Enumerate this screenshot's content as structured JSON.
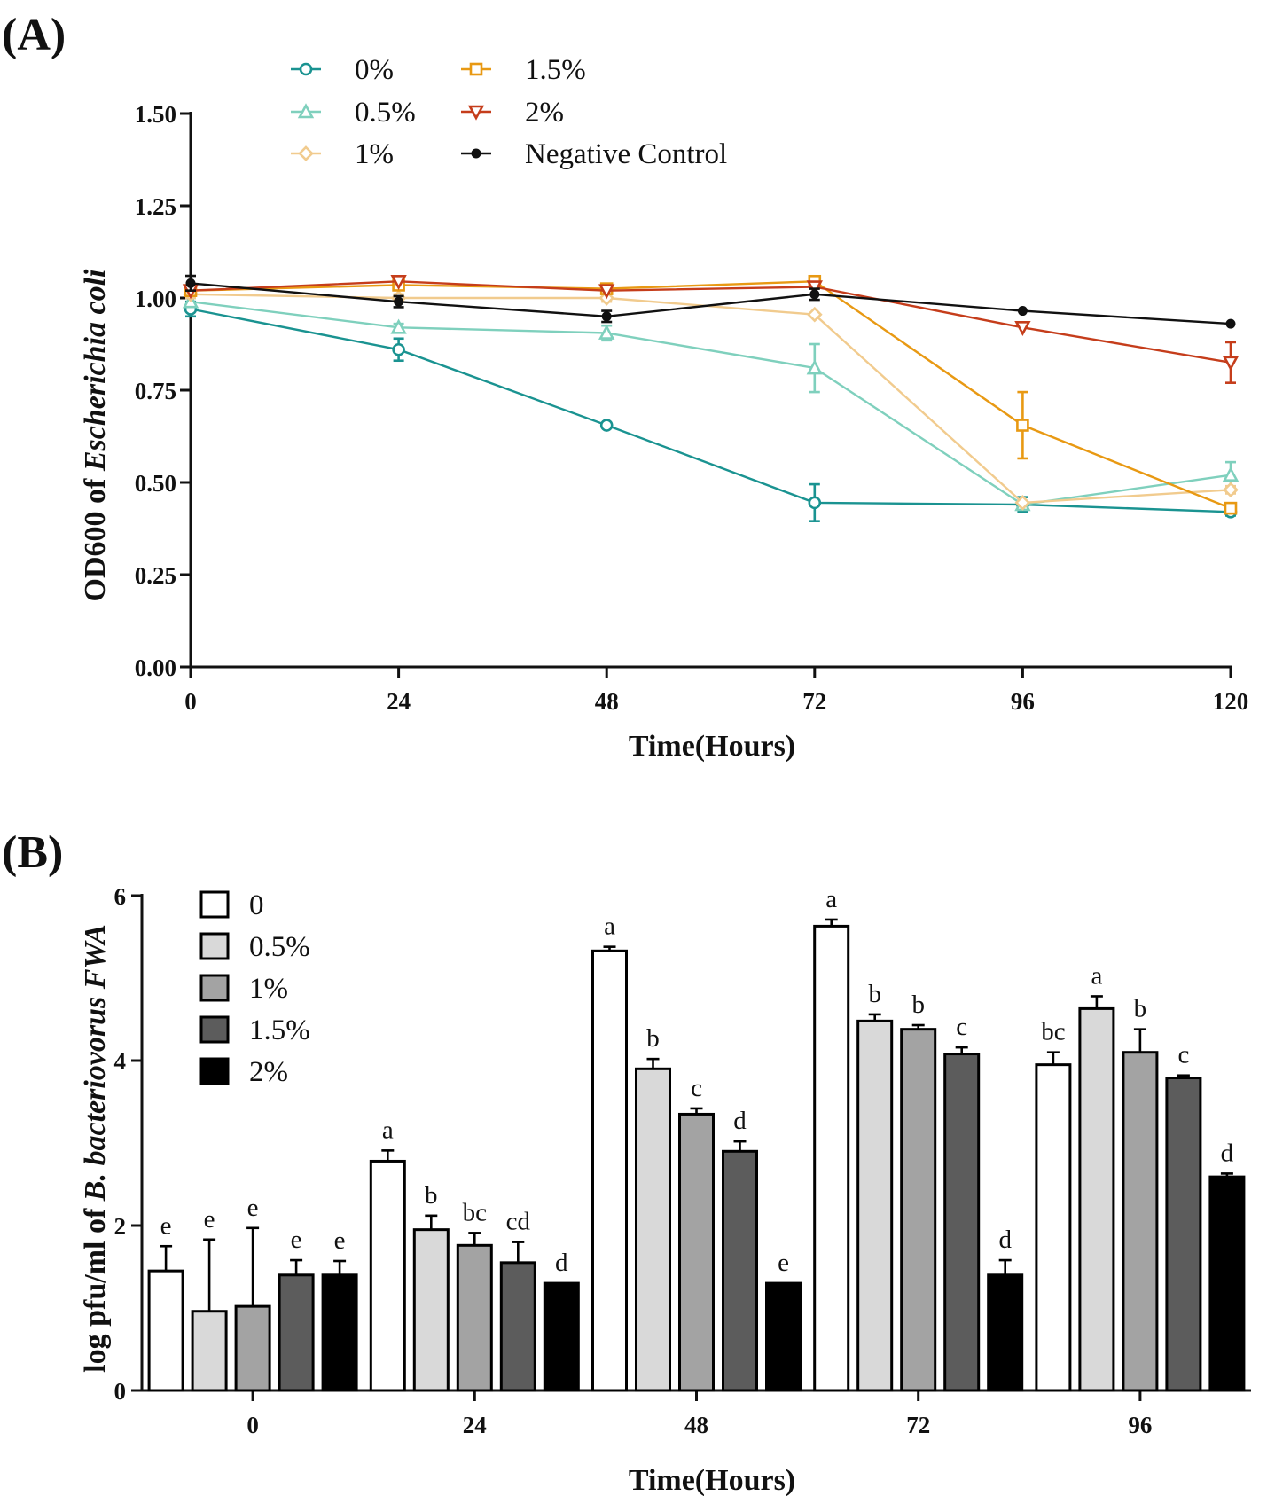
{
  "figure": {
    "panels": [
      "(A)",
      "(B)"
    ]
  },
  "chart_data": [
    {
      "panel": "(A)",
      "type": "line",
      "title": "",
      "xlabel": "Time(Hours)",
      "ylabel_prefix": "OD600 of ",
      "ylabel_italic": "Escherichia coli",
      "x": [
        0,
        24,
        48,
        72,
        96,
        120
      ],
      "xticks": [
        "0",
        "24",
        "48",
        "72",
        "96",
        "120"
      ],
      "yticks": [
        "0.00",
        "0.25",
        "0.50",
        "0.75",
        "1.00",
        "1.25",
        "1.50"
      ],
      "xlim": [
        0,
        120
      ],
      "ylim": [
        0,
        1.5
      ],
      "legend_position": "top-left",
      "series": [
        {
          "name": "0%",
          "color": "#1a9391",
          "marker": "circle",
          "values": [
            0.97,
            0.86,
            0.655,
            0.445,
            0.44,
            0.42
          ],
          "errors": [
            0.02,
            0.03,
            0.0,
            0.05,
            0.02,
            0.01
          ]
        },
        {
          "name": "0.5%",
          "color": "#7fd0bd",
          "marker": "triangle-up",
          "values": [
            0.99,
            0.92,
            0.905,
            0.81,
            0.44,
            0.52
          ],
          "errors": [
            0.01,
            0.01,
            0.02,
            0.065,
            0.01,
            0.035
          ]
        },
        {
          "name": "1%",
          "color": "#f1cb8e",
          "marker": "diamond",
          "values": [
            1.01,
            1.0,
            1.0,
            0.955,
            0.445,
            0.48
          ],
          "errors": [
            0.01,
            0.01,
            0.01,
            0.0,
            0.0,
            0.01
          ]
        },
        {
          "name": "1.5%",
          "color": "#e89913",
          "marker": "square",
          "values": [
            1.02,
            1.035,
            1.025,
            1.045,
            0.655,
            0.43
          ],
          "errors": [
            0.01,
            0.01,
            0.01,
            0.0,
            0.09,
            0.0
          ]
        },
        {
          "name": "2%",
          "color": "#c53d1b",
          "marker": "triangle-down",
          "values": [
            1.02,
            1.045,
            1.02,
            1.03,
            0.92,
            0.825
          ],
          "errors": [
            0.0,
            0.0,
            0.0,
            0.0,
            0.0,
            0.055
          ]
        },
        {
          "name": "Negative Control",
          "color": "#111111",
          "marker": "dot",
          "values": [
            1.04,
            0.99,
            0.95,
            1.01,
            0.965,
            0.93
          ],
          "errors": [
            0.02,
            0.015,
            0.015,
            0.015,
            0.0,
            0.0
          ]
        }
      ]
    },
    {
      "panel": "(B)",
      "type": "bar",
      "title": "",
      "xlabel": "Time(Hours)",
      "ylabel_prefix": "log pfu/ml of ",
      "ylabel_italic": "B. bacteriovorus FWA",
      "categories": [
        "0",
        "24",
        "48",
        "72",
        "96"
      ],
      "yticks": [
        "0",
        "2",
        "4",
        "6"
      ],
      "ylim": [
        0,
        6
      ],
      "legend_position": "top-left",
      "series": [
        {
          "name": "0",
          "color": "#ffffff",
          "values": [
            1.45,
            2.78,
            5.33,
            5.63,
            3.95
          ],
          "errors": [
            0.3,
            0.13,
            0.05,
            0.08,
            0.15
          ],
          "labels": [
            "e",
            "a",
            "a",
            "a",
            "bc"
          ]
        },
        {
          "name": "0.5%",
          "color": "#d9d9d9",
          "values": [
            0.96,
            1.95,
            3.9,
            4.48,
            4.63
          ],
          "errors": [
            0.87,
            0.17,
            0.12,
            0.08,
            0.15
          ],
          "labels": [
            "e",
            "b",
            "b",
            "b",
            "a"
          ]
        },
        {
          "name": "1%",
          "color": "#a3a3a3",
          "values": [
            1.02,
            1.76,
            3.35,
            4.38,
            4.1
          ],
          "errors": [
            0.95,
            0.15,
            0.07,
            0.05,
            0.28
          ],
          "labels": [
            "e",
            "bc",
            "c",
            "b",
            "b"
          ]
        },
        {
          "name": "1.5%",
          "color": "#5c5c5c",
          "values": [
            1.4,
            1.55,
            2.9,
            4.08,
            3.79
          ],
          "errors": [
            0.18,
            0.25,
            0.12,
            0.08,
            0.03
          ],
          "labels": [
            "e",
            "cd",
            "d",
            "c",
            "c"
          ]
        },
        {
          "name": "2%",
          "color": "#000000",
          "values": [
            1.4,
            1.3,
            1.3,
            1.4,
            2.59
          ],
          "errors": [
            0.17,
            0.0,
            0.0,
            0.18,
            0.04
          ],
          "labels": [
            "e",
            "d",
            "e",
            "d",
            "d"
          ]
        }
      ]
    }
  ]
}
